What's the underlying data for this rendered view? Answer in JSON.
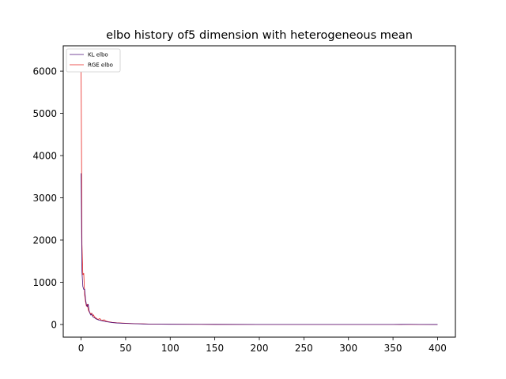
{
  "chart_data": {
    "type": "line",
    "title": "elbo history of5 dimension with heterogeneous mean",
    "xlabel": "",
    "ylabel": "",
    "xlim": [
      -20,
      420
    ],
    "ylim": [
      -300,
      6600
    ],
    "x_ticks": [
      0,
      50,
      100,
      150,
      200,
      250,
      300,
      350,
      400
    ],
    "y_ticks": [
      0,
      1000,
      2000,
      3000,
      4000,
      5000,
      6000
    ],
    "grid": false,
    "legend_position": "top-left",
    "series": [
      {
        "name": "KL elbo",
        "color": "#4b0f7a",
        "points": [
          [
            0,
            3580
          ],
          [
            1,
            1250
          ],
          [
            2,
            900
          ],
          [
            3,
            830
          ],
          [
            4,
            840
          ],
          [
            5,
            600
          ],
          [
            6,
            470
          ],
          [
            7,
            420
          ],
          [
            8,
            480
          ],
          [
            9,
            330
          ],
          [
            10,
            260
          ],
          [
            11,
            220
          ],
          [
            12,
            250
          ],
          [
            13,
            190
          ],
          [
            14,
            170
          ],
          [
            15,
            160
          ],
          [
            17,
            130
          ],
          [
            20,
            105
          ],
          [
            23,
            90
          ],
          [
            26,
            75
          ],
          [
            30,
            60
          ],
          [
            35,
            45
          ],
          [
            40,
            35
          ],
          [
            50,
            25
          ],
          [
            60,
            18
          ],
          [
            70,
            12
          ],
          [
            80,
            8
          ],
          [
            100,
            5
          ],
          [
            150,
            3
          ],
          [
            200,
            2
          ],
          [
            250,
            1
          ],
          [
            300,
            1
          ],
          [
            350,
            1
          ],
          [
            370,
            4
          ],
          [
            380,
            1
          ],
          [
            400,
            0
          ]
        ]
      },
      {
        "name": "RGE elbo",
        "color": "#e8231f",
        "points": [
          [
            0,
            6120
          ],
          [
            1,
            1900
          ],
          [
            2,
            1180
          ],
          [
            3,
            1210
          ],
          [
            4,
            700
          ],
          [
            5,
            540
          ],
          [
            6,
            430
          ],
          [
            7,
            480
          ],
          [
            8,
            350
          ],
          [
            9,
            300
          ],
          [
            10,
            280
          ],
          [
            11,
            240
          ],
          [
            12,
            270
          ],
          [
            13,
            200
          ],
          [
            14,
            230
          ],
          [
            15,
            180
          ],
          [
            17,
            150
          ],
          [
            19,
            120
          ],
          [
            21,
            140
          ],
          [
            23,
            95
          ],
          [
            26,
            110
          ],
          [
            28,
            80
          ],
          [
            30,
            70
          ],
          [
            35,
            50
          ],
          [
            40,
            40
          ],
          [
            50,
            28
          ],
          [
            60,
            20
          ],
          [
            70,
            14
          ],
          [
            80,
            9
          ],
          [
            100,
            6
          ],
          [
            150,
            3
          ],
          [
            200,
            2
          ],
          [
            250,
            1
          ],
          [
            300,
            1
          ],
          [
            350,
            1
          ],
          [
            400,
            0
          ]
        ]
      }
    ]
  }
}
